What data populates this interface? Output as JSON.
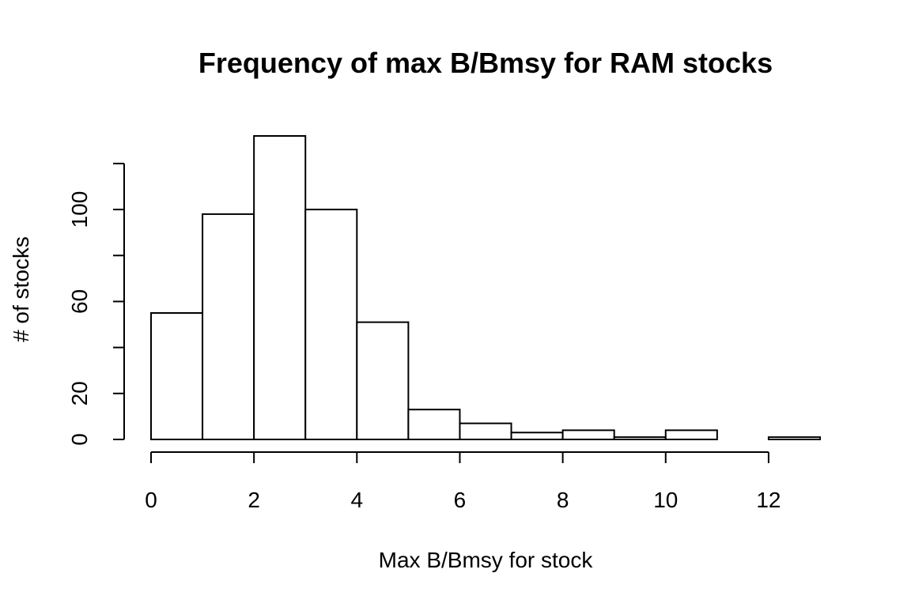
{
  "chart_data": {
    "type": "bar",
    "title": "Frequency of max B/Bmsy for RAM stocks",
    "xlabel": "Max B/Bmsy for stock",
    "ylabel": "# of stocks",
    "bin_edges": [
      0,
      1,
      2,
      3,
      4,
      5,
      6,
      7,
      8,
      9,
      10,
      11,
      12,
      13
    ],
    "values": [
      55,
      98,
      132,
      100,
      51,
      13,
      7,
      3,
      4,
      1,
      4,
      0,
      1
    ],
    "xlim": [
      0,
      13
    ],
    "ylim": [
      0,
      132
    ],
    "x_ticks": [
      0,
      2,
      4,
      6,
      8,
      10,
      12
    ],
    "x_tick_labels": [
      "0",
      "2",
      "4",
      "6",
      "8",
      "10",
      "12"
    ],
    "y_ticks": [
      0,
      20,
      40,
      60,
      80,
      100,
      120
    ],
    "y_tick_labels": [
      "0",
      "20",
      "",
      "60",
      "",
      "100",
      ""
    ],
    "grid": false,
    "legend": "none",
    "bar_fill": "#ffffff",
    "bar_stroke": "#000000"
  }
}
